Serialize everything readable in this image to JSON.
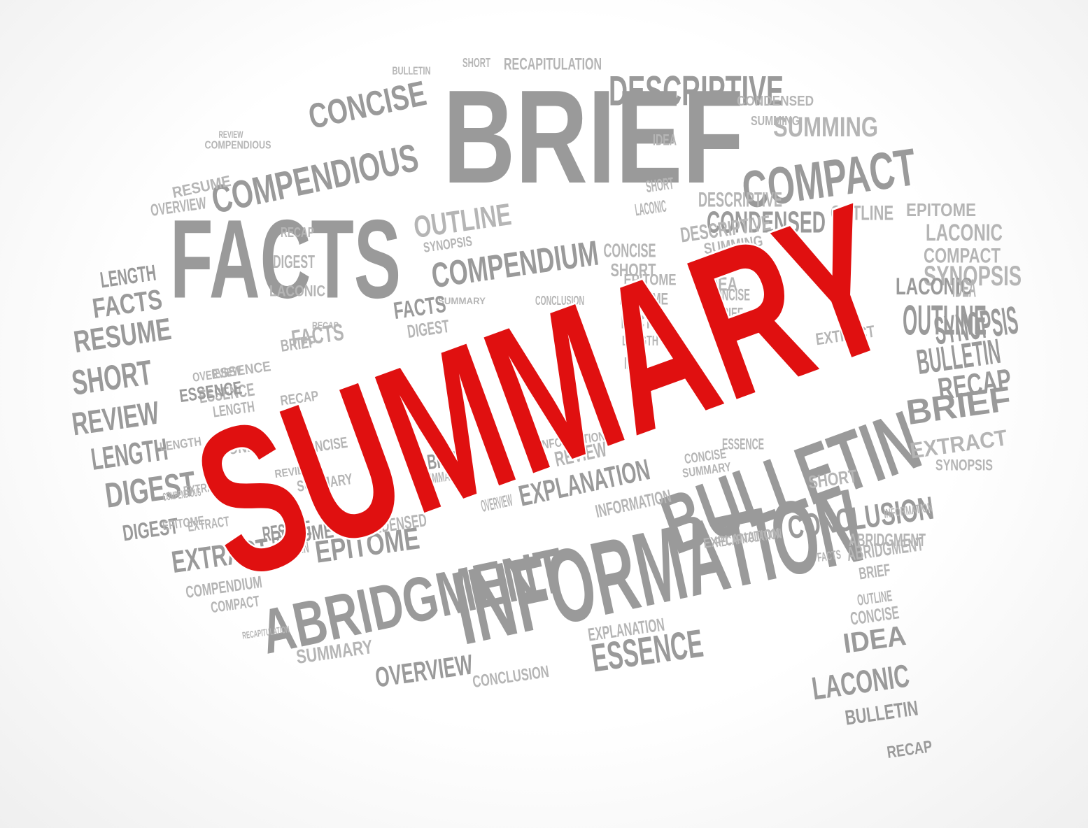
{
  "colors": {
    "accent": "#e01010",
    "word": "#9a9a9a",
    "word_light": "#b5b5b5",
    "word_dark": "#8a8a8a"
  },
  "main_word": "SUMMARY",
  "words": [
    "BRIEF",
    "FACTS",
    "INFORMATION",
    "ABRIDGMENT",
    "BULLETIN",
    "COMPENDIOUS",
    "CONCISE",
    "DESCRIPTIVE",
    "COMPACT",
    "CONDENSED",
    "COMPENDIUM",
    "OUTLINE",
    "SUMMING",
    "RECAPITULATION",
    "ABRIDGMENT",
    "SHORT",
    "BULLETIN",
    "REVIEW",
    "COMPENDIOUS",
    "IDEA",
    "RECAP",
    "BRIEF",
    "EXTRACT",
    "SYNOPSIS",
    "LACONIC",
    "COMPACT",
    "SYNOPSIS",
    "EPITOME",
    "RESUME",
    "OVERVIEW",
    "LENGTH",
    "FACTS",
    "RESUME",
    "SHORT",
    "REVIEW",
    "LENGTH",
    "DIGEST",
    "DIGEST",
    "EXTRACT",
    "COMPENDIUM",
    "COMPACT",
    "RECAPITULATION",
    "SUMMARY",
    "OVERVIEW",
    "CONCLUSION",
    "ESSENCE",
    "EXPLANATION",
    "RESUME",
    "BULLETIN",
    "EPITOME",
    "CONDENSED",
    "EXPLANATION",
    "INFORMATION",
    "REVIEW",
    "OVERVIEW",
    "BRIEF",
    "SUMMARY",
    "CONCLUSION",
    "ABRIDGMENT",
    "FACTS",
    "RECAPITULATION",
    "BRIEF",
    "OUTLINE",
    "CONCISE",
    "IDEA",
    "LACONIC",
    "BULLETIN",
    "RECAP",
    "DIGEST",
    "RECAP",
    "LACONIC",
    "SYNOPSIS",
    "BULLETIN",
    "SUMMARY",
    "OUTLINE",
    "CONCLUSION",
    "CONCISE",
    "SHORT",
    "IDEA",
    "EPITOME",
    "FACTS",
    "LENGTH",
    "IDEA",
    "ESSENCE",
    "LENGTH",
    "EXTRACT",
    "SHORT",
    "LACONIC",
    "OUTLINE",
    "ESSENCE",
    "DESCRIPTIVE",
    "EXPLANATION",
    "SUMMING",
    "INFORMATION",
    "IDEA",
    "CONCISE",
    "BRIEF",
    "EPITOME",
    "FACTS",
    "ESSENCE",
    "EXTRACT",
    "RESUME",
    "DESCRIPTIVE",
    "LACONIC",
    "IDEA",
    "DIGEST",
    "RECAP",
    "SYNOPSIS",
    "CONDENSED",
    "SUMMING",
    "SHORT",
    "FACTS",
    "BRIEF",
    "CONCISE",
    "LACONIC",
    "SUMMARY",
    "ESSENCE",
    "OVERVIEW",
    "LENGTH",
    "EPITOME",
    "EXTRACT",
    "COMPENDIOUS",
    "RECAP",
    "CONCISE",
    "SUMMARY",
    "INFORMATION",
    "REVIEW"
  ]
}
